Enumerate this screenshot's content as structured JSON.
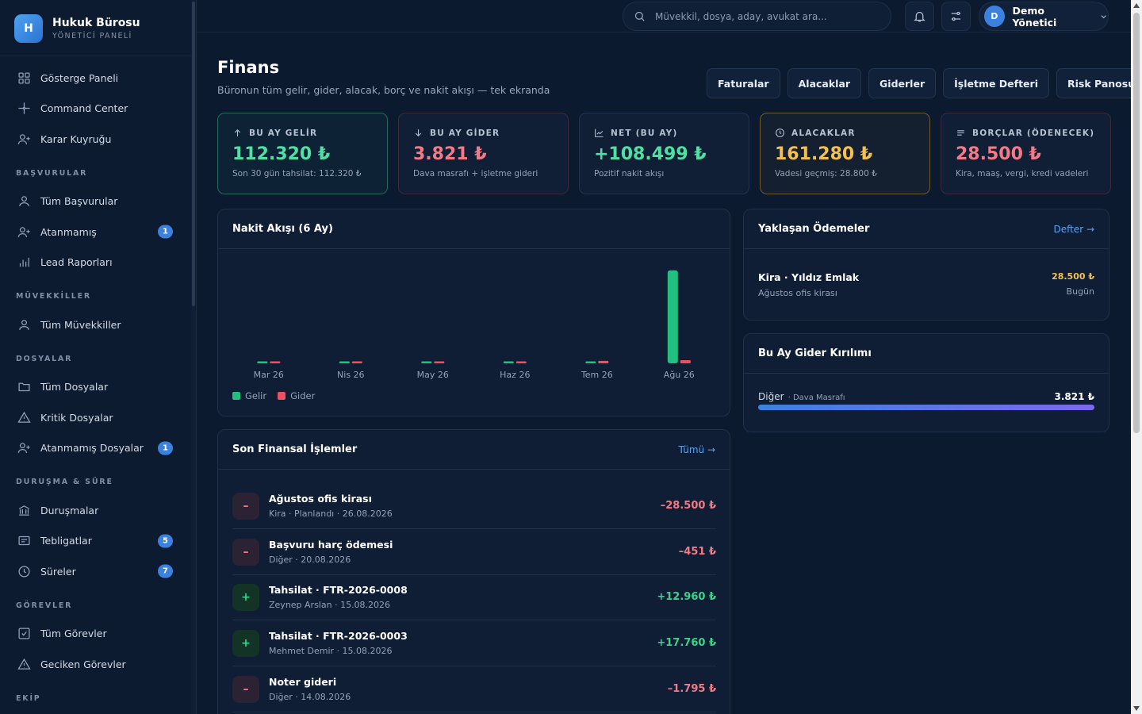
{
  "brand": {
    "logo_letter": "H",
    "title": "Hukuk Bürosu",
    "subtitle": "YÖNETİCİ PANELİ"
  },
  "sidebar": {
    "top_items": [
      {
        "label": "Gösterge Paneli",
        "icon": "dashboard-grid-icon"
      },
      {
        "label": "Command Center",
        "icon": "crosshair-icon"
      },
      {
        "label": "Karar Kuyruğu",
        "icon": "user-plus-icon"
      }
    ],
    "sections": [
      {
        "title": "BAŞVURULAR",
        "items": [
          {
            "label": "Tüm Başvurular",
            "icon": "user-icon",
            "badge": ""
          },
          {
            "label": "Atanmamış",
            "icon": "user-plus-icon",
            "badge": "1"
          },
          {
            "label": "Lead Raporları",
            "icon": "bar-chart-icon",
            "badge": ""
          }
        ]
      },
      {
        "title": "MÜVEKKİLLER",
        "items": [
          {
            "label": "Tüm Müvekkiller",
            "icon": "user-icon",
            "badge": ""
          }
        ]
      },
      {
        "title": "DOSYALAR",
        "items": [
          {
            "label": "Tüm Dosyalar",
            "icon": "folder-icon",
            "badge": ""
          },
          {
            "label": "Kritik Dosyalar",
            "icon": "warning-triangle-icon",
            "badge": ""
          },
          {
            "label": "Atanmamış Dosyalar",
            "icon": "user-plus-icon",
            "badge": "1"
          }
        ]
      },
      {
        "title": "DURUŞMA & SÜRE",
        "items": [
          {
            "label": "Duruşmalar",
            "icon": "courthouse-icon",
            "badge": ""
          },
          {
            "label": "Tebligatlar",
            "icon": "notice-icon",
            "badge": "5"
          },
          {
            "label": "Süreler",
            "icon": "clock-icon",
            "badge": "7"
          }
        ]
      },
      {
        "title": "GÖREVLER",
        "items": [
          {
            "label": "Tüm Görevler",
            "icon": "checkbox-icon",
            "badge": ""
          },
          {
            "label": "Geciken Görevler",
            "icon": "warning-triangle-icon",
            "badge": ""
          }
        ]
      },
      {
        "title": "EKİP",
        "items": []
      }
    ]
  },
  "topbar": {
    "search_placeholder": "Müvekkil, dosya, aday, avukat ara...",
    "user_initial": "D",
    "user_name": "Demo Yönetici"
  },
  "page": {
    "title": "Finans",
    "subtitle": "Büronun tüm gelir, gider, alacak, borç ve nakit akışı — tek ekranda",
    "tabs": [
      "Faturalar",
      "Alacaklar",
      "Giderler",
      "İşletme Defteri",
      "Risk Panosu"
    ]
  },
  "kpis": [
    {
      "label": "BU AY GELİR",
      "value": "112.320 ₺",
      "sub": "Son 30 gün tahsilat: 112.320 ₺",
      "icon": "arrow-up-icon",
      "color": "#4fe0a3",
      "tone": "green"
    },
    {
      "label": "BU AY GİDER",
      "value": "3.821 ₺",
      "sub": "Dava masrafı + işletme gideri",
      "icon": "arrow-down-icon",
      "color": "#f47a85",
      "tone": "red"
    },
    {
      "label": "NET (BU AY)",
      "value": "+108.499 ₺",
      "sub": "Pozitif nakit akışı",
      "icon": "trend-chart-icon",
      "color": "#4fe0a3",
      "tone": "plain"
    },
    {
      "label": "ALACAKLAR",
      "value": "161.280 ₺",
      "sub": "Vadesi geçmiş: 28.800 ₺",
      "icon": "clock-icon",
      "color": "#f5c04e",
      "tone": "amber"
    },
    {
      "label": "BORÇLAR (ÖDENECEK)",
      "value": "28.500 ₺",
      "sub": "Kira, maaş, vergi, kredi vadeleri",
      "icon": "list-lines-icon",
      "color": "#f47a85",
      "tone": "pink"
    }
  ],
  "cashflow": {
    "title": "Nakit Akışı (6 Ay)",
    "legend": {
      "income": "Gelir",
      "expense": "Gider"
    },
    "colors": {
      "income": "#22c07e",
      "expense": "#ef5060"
    }
  },
  "chart_data": {
    "type": "bar",
    "categories": [
      "Mar 26",
      "Nis 26",
      "May 26",
      "Haz 26",
      "Tem 26",
      "Ağu 26"
    ],
    "series": [
      {
        "name": "Gelir",
        "values": [
          0,
          0,
          0,
          0,
          0,
          112320
        ]
      },
      {
        "name": "Gider",
        "values": [
          0,
          0,
          0,
          0,
          3000,
          3821
        ]
      }
    ],
    "ylim": [
      0,
      115000
    ]
  },
  "upcoming": {
    "title": "Yaklaşan Ödemeler",
    "link": "Defter →",
    "items": [
      {
        "title": "Kira · Yıldız Emlak",
        "desc": "Ağustos ofis kirası",
        "amount": "28.500 ₺",
        "when": "Bugün"
      }
    ]
  },
  "breakdown": {
    "title": "Bu Ay Gider Kırılımı",
    "items": [
      {
        "category": "Diğer",
        "detail": "· Dava Masrafı",
        "amount": "3.821 ₺",
        "share": 1.0
      }
    ]
  },
  "transactions": {
    "title": "Son Finansal İşlemler",
    "link": "Tümü →",
    "items": [
      {
        "sign": "–",
        "type": "minus",
        "title": "Ağustos ofis kirası",
        "meta": "Kira · Planlandı · 26.08.2026",
        "amount": "–28.500 ₺"
      },
      {
        "sign": "–",
        "type": "minus",
        "title": "Başvuru harç ödemesi",
        "meta": "Diğer · 20.08.2026",
        "amount": "–451 ₺"
      },
      {
        "sign": "+",
        "type": "plus",
        "title": "Tahsilat · FTR-2026-0008",
        "meta": "Zeynep Arslan · 15.08.2026",
        "amount": "+12.960 ₺"
      },
      {
        "sign": "+",
        "type": "plus",
        "title": "Tahsilat · FTR-2026-0003",
        "meta": "Mehmet Demir · 15.08.2026",
        "amount": "+17.760 ₺"
      },
      {
        "sign": "–",
        "type": "minus",
        "title": "Noter gideri",
        "meta": "Diğer · 14.08.2026",
        "amount": "–1.795 ₺"
      }
    ]
  }
}
